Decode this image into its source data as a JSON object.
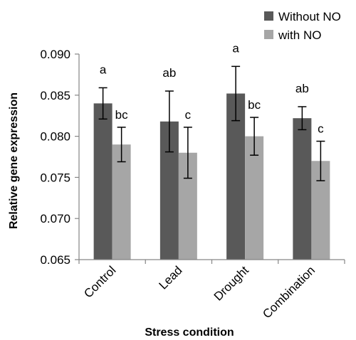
{
  "chart_data": {
    "type": "bar",
    "title": "",
    "xlabel": "Stress condition",
    "ylabel": "Relative gene expression",
    "ylim": [
      0.065,
      0.09
    ],
    "yticks": [
      "0.065",
      "0.070",
      "0.075",
      "0.080",
      "0.085",
      "0.090"
    ],
    "grid": false,
    "legend_position": "top-right",
    "categories": [
      "Control",
      "Lead",
      "Drought",
      "Combination"
    ],
    "series": [
      {
        "name": "Without NO",
        "color": "#595959",
        "values": [
          0.084,
          0.0818,
          0.0852,
          0.0822
        ],
        "errors": [
          0.0019,
          0.0037,
          0.0033,
          0.0014
        ],
        "labels": [
          "a",
          "ab",
          "a",
          "ab"
        ]
      },
      {
        "name": "with NO",
        "color": "#a6a6a6",
        "values": [
          0.079,
          0.078,
          0.08,
          0.077
        ],
        "errors": [
          0.0021,
          0.0031,
          0.0023,
          0.0024
        ],
        "labels": [
          "bc",
          "c",
          "bc",
          "c"
        ]
      }
    ]
  }
}
